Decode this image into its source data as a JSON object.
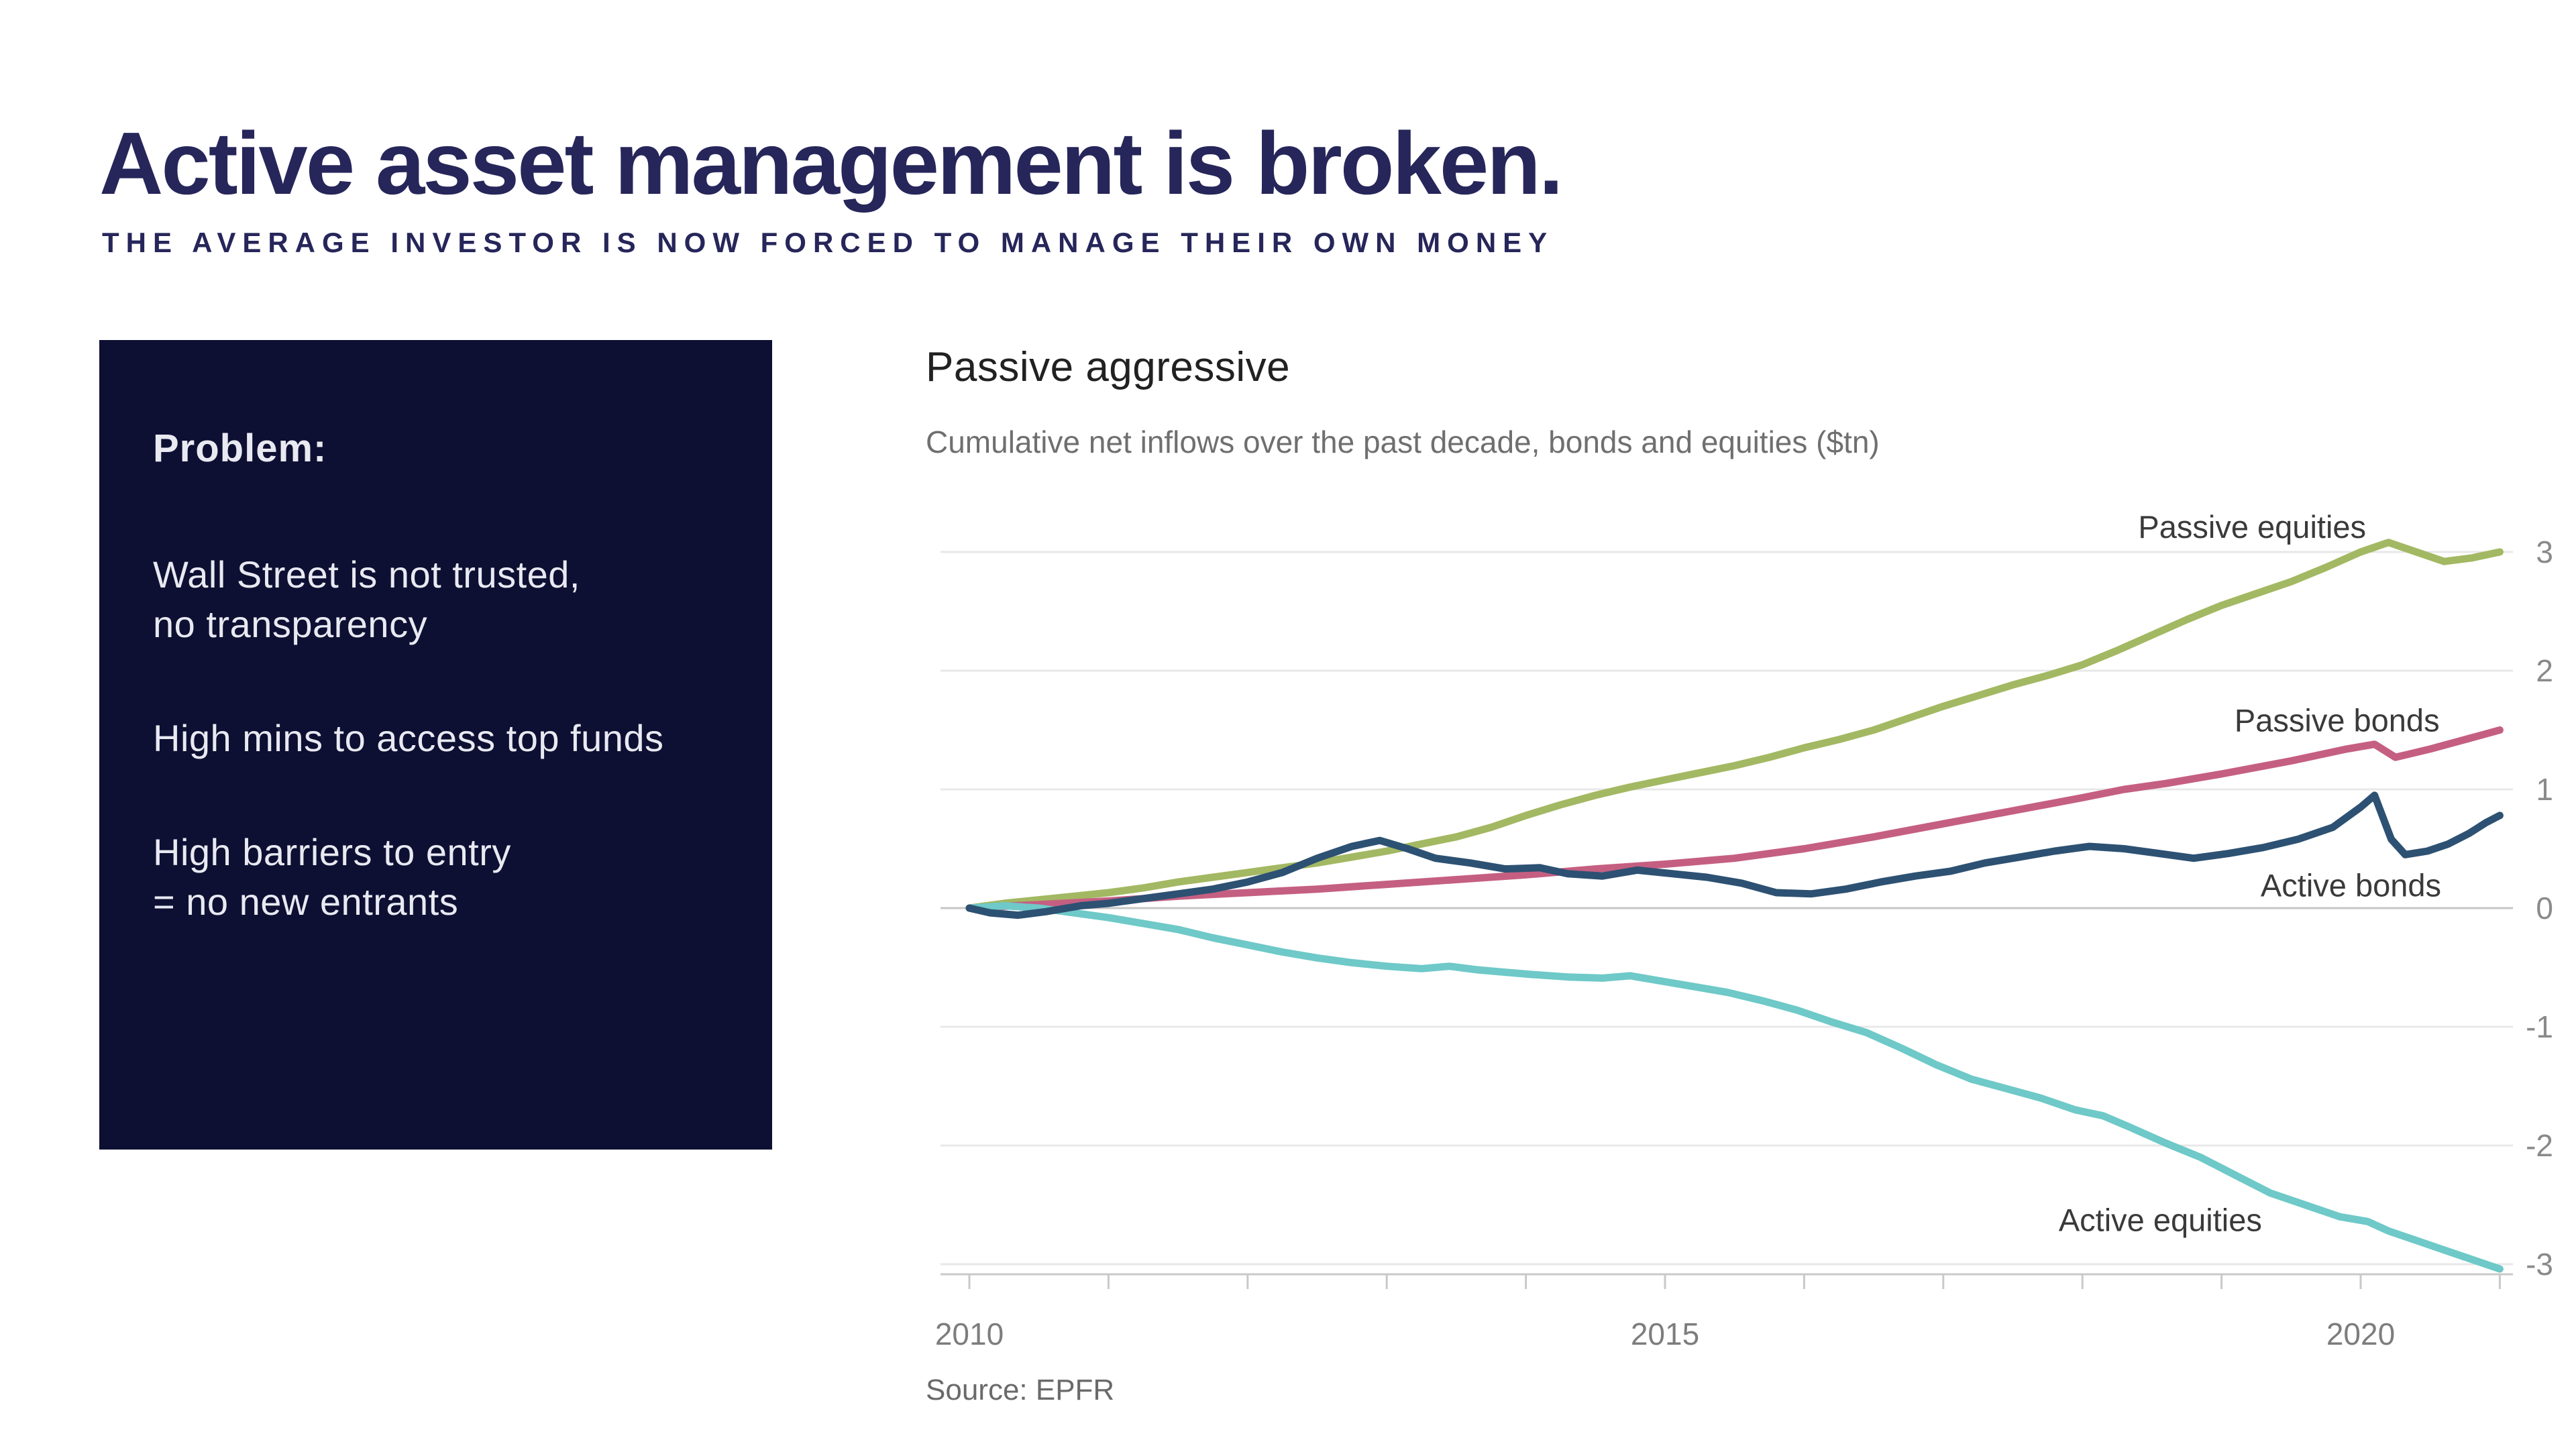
{
  "slide": {
    "title": "Active asset management is broken.",
    "subtitle": "THE AVERAGE INVESTOR IS NOW FORCED TO MANAGE THEIR OWN MONEY",
    "title_color": "#26265a"
  },
  "problem_box": {
    "bg_color": "#0d1032",
    "text_color": "#e9e9f2",
    "heading": "Problem:",
    "items": [
      [
        "Wall Street is not trusted,",
        "no transparency"
      ],
      [
        "High mins to access top funds"
      ],
      [
        "High barriers to entry",
        "= no new entrants"
      ]
    ]
  },
  "chart": {
    "title": "Passive aggressive",
    "subtitle": "Cumulative net inflows over the past decade, bonds and equities ($tn)",
    "source": "Source: EPFR"
  },
  "colors": {
    "grid": "#e8e8e8",
    "zero_line": "#c6c6c6",
    "axis": "#c9c9c9",
    "axis_text": "#8a8a8a",
    "series_label_text": "#3a3a3a"
  },
  "chart_data": {
    "type": "line",
    "title": "Passive aggressive",
    "subtitle": "Cumulative net inflows over the past decade, bonds and equities ($tn)",
    "source": "Source: EPFR",
    "xlabel": "",
    "ylabel": "$tn",
    "x_range": [
      2010,
      2021.1
    ],
    "ylim": [
      -3,
      3
    ],
    "grid": true,
    "legend_position": "inline-labels",
    "y_ticks": [
      3,
      2,
      1,
      0,
      -1,
      -2,
      -3
    ],
    "x_ticks": [
      2010,
      2011,
      2012,
      2013,
      2014,
      2015,
      2016,
      2017,
      2018,
      2019,
      2020,
      2021
    ],
    "labeled_x_ticks": [
      2010,
      2015,
      2020
    ],
    "series": [
      {
        "name": "Passive equities",
        "color": "#a3b862",
        "label_at": {
          "x": 2019.22,
          "y": 3.21
        },
        "points": [
          [
            2010,
            0
          ],
          [
            2010.25,
            0.04
          ],
          [
            2010.5,
            0.07
          ],
          [
            2010.75,
            0.1
          ],
          [
            2011,
            0.13
          ],
          [
            2011.25,
            0.17
          ],
          [
            2011.5,
            0.22
          ],
          [
            2011.75,
            0.26
          ],
          [
            2012,
            0.3
          ],
          [
            2012.25,
            0.34
          ],
          [
            2012.5,
            0.38
          ],
          [
            2012.75,
            0.43
          ],
          [
            2013,
            0.48
          ],
          [
            2013.25,
            0.54
          ],
          [
            2013.5,
            0.6
          ],
          [
            2013.75,
            0.68
          ],
          [
            2014,
            0.78
          ],
          [
            2014.25,
            0.87
          ],
          [
            2014.5,
            0.95
          ],
          [
            2014.75,
            1.02
          ],
          [
            2015,
            1.08
          ],
          [
            2015.25,
            1.14
          ],
          [
            2015.5,
            1.2
          ],
          [
            2015.75,
            1.27
          ],
          [
            2016,
            1.35
          ],
          [
            2016.25,
            1.42
          ],
          [
            2016.5,
            1.5
          ],
          [
            2016.75,
            1.6
          ],
          [
            2017,
            1.7
          ],
          [
            2017.25,
            1.79
          ],
          [
            2017.5,
            1.88
          ],
          [
            2017.75,
            1.96
          ],
          [
            2018,
            2.05
          ],
          [
            2018.25,
            2.17
          ],
          [
            2018.5,
            2.3
          ],
          [
            2018.75,
            2.43
          ],
          [
            2019,
            2.55
          ],
          [
            2019.25,
            2.65
          ],
          [
            2019.5,
            2.75
          ],
          [
            2019.75,
            2.87
          ],
          [
            2020,
            3.0
          ],
          [
            2020.2,
            3.08
          ],
          [
            2020.4,
            3.0
          ],
          [
            2020.6,
            2.92
          ],
          [
            2020.8,
            2.95
          ],
          [
            2021,
            3.0
          ]
        ]
      },
      {
        "name": "Passive bonds",
        "color": "#c55f82",
        "label_at": {
          "x": 2019.83,
          "y": 1.58
        },
        "points": [
          [
            2010,
            0
          ],
          [
            2010.5,
            0.03
          ],
          [
            2011,
            0.06
          ],
          [
            2011.5,
            0.1
          ],
          [
            2012,
            0.13
          ],
          [
            2012.5,
            0.16
          ],
          [
            2013,
            0.2
          ],
          [
            2013.5,
            0.24
          ],
          [
            2014,
            0.28
          ],
          [
            2014.5,
            0.33
          ],
          [
            2015,
            0.37
          ],
          [
            2015.5,
            0.42
          ],
          [
            2016,
            0.5
          ],
          [
            2016.5,
            0.6
          ],
          [
            2017,
            0.71
          ],
          [
            2017.5,
            0.82
          ],
          [
            2018,
            0.93
          ],
          [
            2018.3,
            1.0
          ],
          [
            2018.6,
            1.05
          ],
          [
            2019,
            1.13
          ],
          [
            2019.5,
            1.24
          ],
          [
            2019.9,
            1.34
          ],
          [
            2020.1,
            1.38
          ],
          [
            2020.25,
            1.27
          ],
          [
            2020.5,
            1.34
          ],
          [
            2020.75,
            1.42
          ],
          [
            2021,
            1.5
          ]
        ]
      },
      {
        "name": "Active equities",
        "color": "#6ec9c8",
        "label_at": {
          "x": 2018.56,
          "y": -2.63
        },
        "points": [
          [
            2010,
            0
          ],
          [
            2010.25,
            0.02
          ],
          [
            2010.5,
            0
          ],
          [
            2010.75,
            -0.04
          ],
          [
            2011,
            -0.08
          ],
          [
            2011.25,
            -0.13
          ],
          [
            2011.5,
            -0.18
          ],
          [
            2011.75,
            -0.25
          ],
          [
            2012,
            -0.31
          ],
          [
            2012.25,
            -0.37
          ],
          [
            2012.5,
            -0.42
          ],
          [
            2012.75,
            -0.46
          ],
          [
            2013,
            -0.49
          ],
          [
            2013.25,
            -0.51
          ],
          [
            2013.45,
            -0.49
          ],
          [
            2013.65,
            -0.52
          ],
          [
            2013.85,
            -0.54
          ],
          [
            2014.05,
            -0.56
          ],
          [
            2014.3,
            -0.58
          ],
          [
            2014.55,
            -0.59
          ],
          [
            2014.75,
            -0.57
          ],
          [
            2014.95,
            -0.61
          ],
          [
            2015.2,
            -0.66
          ],
          [
            2015.45,
            -0.71
          ],
          [
            2015.7,
            -0.78
          ],
          [
            2015.95,
            -0.86
          ],
          [
            2016.2,
            -0.96
          ],
          [
            2016.45,
            -1.05
          ],
          [
            2016.7,
            -1.18
          ],
          [
            2016.95,
            -1.32
          ],
          [
            2017.2,
            -1.44
          ],
          [
            2017.45,
            -1.52
          ],
          [
            2017.7,
            -1.6
          ],
          [
            2017.95,
            -1.7
          ],
          [
            2018.15,
            -1.75
          ],
          [
            2018.35,
            -1.85
          ],
          [
            2018.6,
            -1.98
          ],
          [
            2018.85,
            -2.1
          ],
          [
            2019.1,
            -2.25
          ],
          [
            2019.35,
            -2.4
          ],
          [
            2019.6,
            -2.5
          ],
          [
            2019.85,
            -2.6
          ],
          [
            2020.05,
            -2.64
          ],
          [
            2020.2,
            -2.72
          ],
          [
            2020.4,
            -2.8
          ],
          [
            2020.6,
            -2.88
          ],
          [
            2020.8,
            -2.96
          ],
          [
            2021,
            -3.04
          ]
        ]
      },
      {
        "name": "Active bonds",
        "color": "#2d5172",
        "label_at": {
          "x": 2019.93,
          "y": 0.19
        },
        "points": [
          [
            2010,
            0
          ],
          [
            2010.15,
            -0.04
          ],
          [
            2010.35,
            -0.06
          ],
          [
            2010.55,
            -0.03
          ],
          [
            2010.8,
            0.02
          ],
          [
            2011,
            0.04
          ],
          [
            2011.25,
            0.08
          ],
          [
            2011.5,
            0.12
          ],
          [
            2011.75,
            0.16
          ],
          [
            2012,
            0.22
          ],
          [
            2012.25,
            0.3
          ],
          [
            2012.5,
            0.42
          ],
          [
            2012.75,
            0.52
          ],
          [
            2012.95,
            0.57
          ],
          [
            2013.15,
            0.5
          ],
          [
            2013.35,
            0.42
          ],
          [
            2013.6,
            0.38
          ],
          [
            2013.85,
            0.33
          ],
          [
            2014.1,
            0.34
          ],
          [
            2014.3,
            0.29
          ],
          [
            2014.55,
            0.27
          ],
          [
            2014.8,
            0.32
          ],
          [
            2015.05,
            0.29
          ],
          [
            2015.3,
            0.26
          ],
          [
            2015.55,
            0.21
          ],
          [
            2015.8,
            0.13
          ],
          [
            2016.05,
            0.12
          ],
          [
            2016.3,
            0.16
          ],
          [
            2016.55,
            0.22
          ],
          [
            2016.8,
            0.27
          ],
          [
            2017.05,
            0.31
          ],
          [
            2017.3,
            0.38
          ],
          [
            2017.55,
            0.43
          ],
          [
            2017.8,
            0.48
          ],
          [
            2018.05,
            0.52
          ],
          [
            2018.3,
            0.5
          ],
          [
            2018.55,
            0.46
          ],
          [
            2018.8,
            0.42
          ],
          [
            2019.05,
            0.46
          ],
          [
            2019.3,
            0.51
          ],
          [
            2019.55,
            0.58
          ],
          [
            2019.8,
            0.68
          ],
          [
            2020,
            0.85
          ],
          [
            2020.1,
            0.95
          ],
          [
            2020.22,
            0.58
          ],
          [
            2020.32,
            0.45
          ],
          [
            2020.48,
            0.48
          ],
          [
            2020.63,
            0.54
          ],
          [
            2020.78,
            0.63
          ],
          [
            2020.9,
            0.72
          ],
          [
            2021,
            0.78
          ]
        ]
      }
    ]
  }
}
